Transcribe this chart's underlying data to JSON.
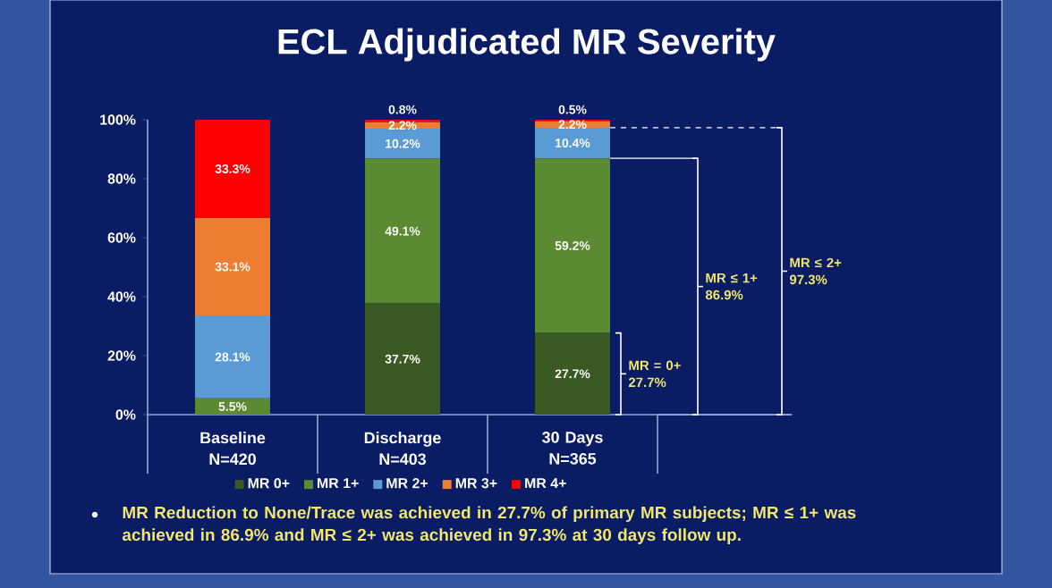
{
  "chart_data": {
    "type": "bar",
    "stacked": true,
    "title": "ECL Adjudicated MR Severity",
    "categories": [
      "Baseline N=420",
      "Discharge N=403",
      "30 Days N=365"
    ],
    "series": [
      {
        "name": "MR 0+",
        "color": "#3b5a23",
        "values": [
          0,
          37.7,
          27.7
        ],
        "value_labels": [
          null,
          "37.7%",
          "27.7%"
        ]
      },
      {
        "name": "MR 1+",
        "color": "#5b8a32",
        "values": [
          5.5,
          49.1,
          59.2
        ],
        "value_labels": [
          "5.5%",
          "49.1%",
          "59.2%"
        ]
      },
      {
        "name": "MR 2+",
        "color": "#5b9bd5",
        "values": [
          28.1,
          10.2,
          10.4
        ],
        "value_labels": [
          "28.1%",
          "10.2%",
          "10.4%"
        ]
      },
      {
        "name": "MR 3+",
        "color": "#ed7d31",
        "values": [
          33.1,
          2.2,
          2.2
        ],
        "value_labels": [
          "33.1%",
          "2.2%",
          "2.2%"
        ]
      },
      {
        "name": "MR 4+",
        "color": "#ff0000",
        "values": [
          33.3,
          0.8,
          0.5
        ],
        "value_labels": [
          "33.3%",
          "0.8%",
          "0.5%"
        ]
      }
    ],
    "ylim": [
      0,
      100
    ],
    "yticks": [
      {
        "value": 0,
        "label": "0%"
      },
      {
        "value": 20,
        "label": "20%"
      },
      {
        "value": 40,
        "label": "40%"
      },
      {
        "value": 60,
        "label": "60%"
      },
      {
        "value": 80,
        "label": "80%"
      },
      {
        "value": 100,
        "label": "100%"
      }
    ],
    "legend": "bottom",
    "annotations": [
      "MR = 0+ 27.7%",
      "MR ≤ 1+ 86.9%",
      "MR ≤ 2+ 97.3%",
      "MR Reduction to None/Trace was achieved in 27.7% of primary MR subjects; MR ≤ 1+ was achieved in 86.9% and MR ≤ 2+ was achieved in 97.3% at 30 days follow up."
    ]
  }
}
